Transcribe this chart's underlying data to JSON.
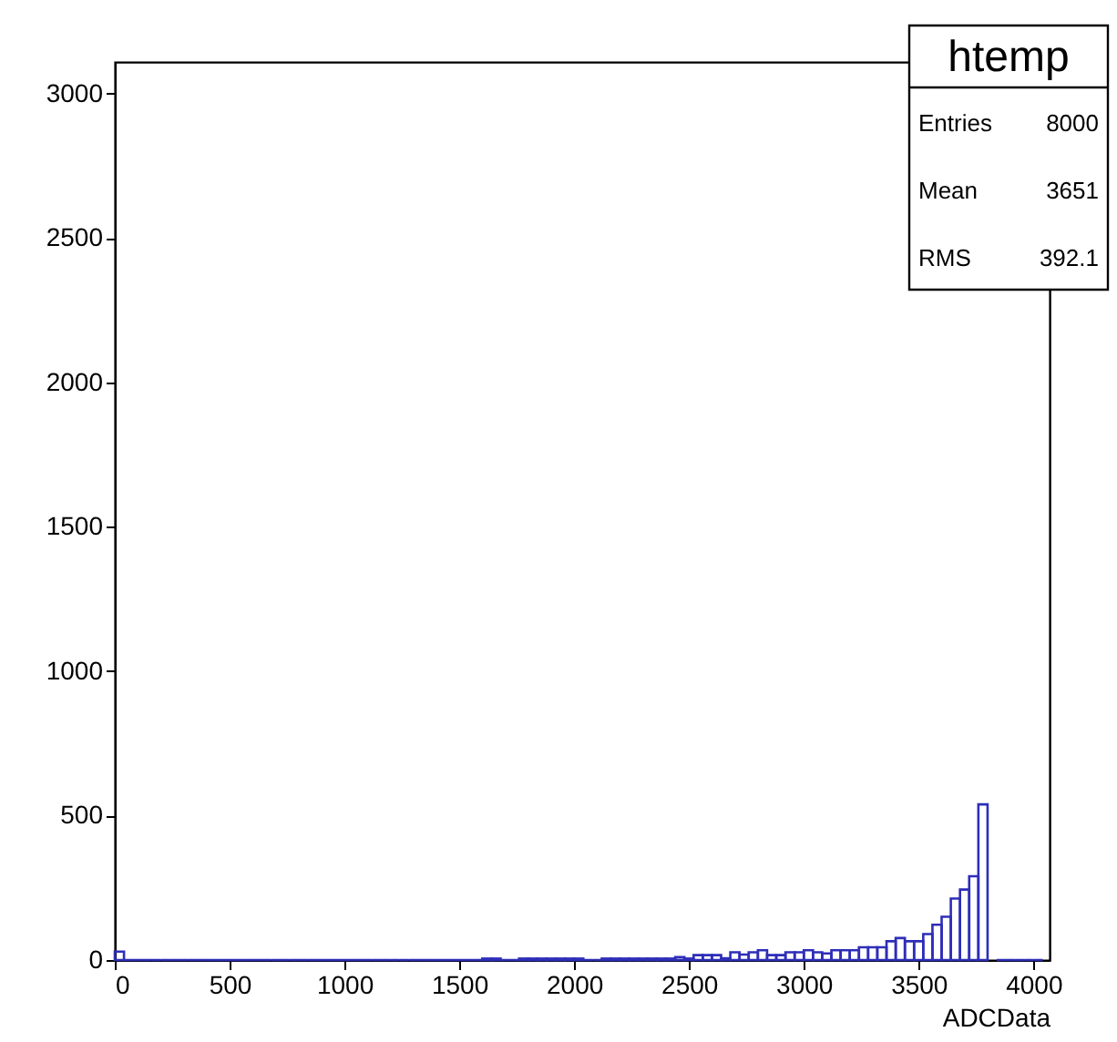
{
  "chart_data": {
    "type": "histogram",
    "xlabel": "ADCData",
    "color": "#2e2eb8",
    "grid": false,
    "xlim": [
      0,
      4070
    ],
    "xticks": [
      0,
      500,
      1000,
      1500,
      2000,
      2500,
      3000,
      3500,
      4000
    ],
    "ylim": [
      0,
      3110
    ],
    "yticks": [
      0,
      500,
      1000,
      1500,
      2000,
      2500,
      3000
    ],
    "bins": [
      0,
      40,
      80,
      120,
      160,
      200,
      240,
      280,
      320,
      360,
      400,
      440,
      480,
      520,
      560,
      600,
      640,
      680,
      720,
      760,
      800,
      840,
      880,
      920,
      960,
      1000,
      1040,
      1080,
      1120,
      1160,
      1200,
      1240,
      1280,
      1320,
      1360,
      1400,
      1440,
      1480,
      1520,
      1560,
      1600,
      1640,
      1680,
      1720,
      1760,
      1800,
      1840,
      1880,
      1920,
      1960,
      2000,
      2040,
      2080,
      2120,
      2160,
      2200,
      2240,
      2280,
      2320,
      2360,
      2400,
      2440,
      2480,
      2520,
      2560,
      2600,
      2640,
      2680,
      2720,
      2760,
      2800,
      2840,
      2880,
      2920,
      2960,
      3000,
      3040,
      3080,
      3120,
      3160,
      3200,
      3240,
      3280,
      3320,
      3360,
      3400,
      3440,
      3480,
      3520,
      3560,
      3600,
      3640,
      3680,
      3720,
      3760,
      3800,
      3840,
      3880,
      3920,
      3960,
      4000,
      4040
    ],
    "values": [
      29,
      0,
      0,
      0,
      0,
      0,
      0,
      0,
      0,
      0,
      0,
      0,
      0,
      0,
      0,
      0,
      0,
      0,
      0,
      0,
      0,
      0,
      0,
      0,
      0,
      0,
      0,
      0,
      0,
      0,
      0,
      0,
      0,
      0,
      0,
      0,
      0,
      0,
      0,
      0,
      5,
      5,
      0,
      0,
      5,
      5,
      5,
      5,
      5,
      5,
      5,
      0,
      0,
      5,
      5,
      5,
      5,
      5,
      5,
      5,
      5,
      10,
      5,
      17,
      17,
      17,
      6,
      27,
      19,
      27,
      34,
      17,
      17,
      27,
      27,
      34,
      27,
      23,
      34,
      34,
      34,
      44,
      44,
      44,
      65,
      76,
      65,
      65,
      90,
      122,
      150,
      213,
      244,
      290,
      539,
      null,
      0,
      0,
      0,
      0,
      0
    ],
    "annotations": [
      "htemp",
      "Entries",
      "8000",
      "Mean",
      "3651",
      "RMS",
      "392.1"
    ]
  }
}
